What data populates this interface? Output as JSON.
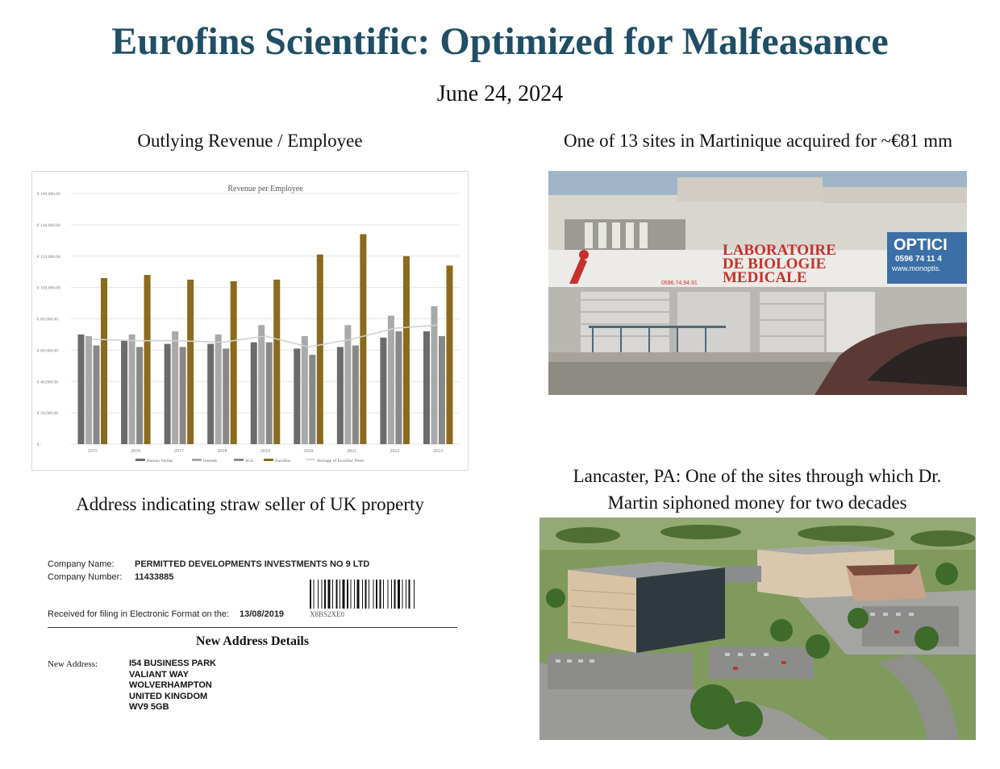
{
  "header": {
    "title": "Eurofins Scientific: Optimized for Malfeasance",
    "date": "June 24, 2024"
  },
  "captions": {
    "chart": "Outlying Revenue / Employee",
    "martinique": "One of 13 sites in Martinique acquired for ~€81 mm",
    "address": "Address indicating straw seller of UK property",
    "lancaster_line1": "Lancaster, PA: One of the sites through which Dr.",
    "lancaster_line2": "Martin siphoned money for two decades"
  },
  "chart_data": {
    "type": "bar",
    "title": "Revenue per Employee",
    "categories": [
      "2015",
      "2016",
      "2017",
      "2018",
      "2019",
      "2020",
      "2021",
      "2022",
      "2023"
    ],
    "ylim": [
      0,
      160000
    ],
    "yticks": [
      "€ 160,000.00",
      "€ 140,000.00",
      "€ 120,000.00",
      "€ 100,000.00",
      "€ 80,000.00",
      "€ 60,000.00",
      "€ 40,000.00",
      "€ 20,000.00",
      "€ -"
    ],
    "series": [
      {
        "name": "Bureau Veritas",
        "color": "#6b6b6b",
        "values": [
          70000,
          66000,
          64000,
          64000,
          65000,
          61000,
          62000,
          68000,
          72000
        ]
      },
      {
        "name": "Intertek",
        "color": "#a9a9a9",
        "values": [
          69000,
          70000,
          72000,
          70000,
          76000,
          69000,
          76000,
          82000,
          88000
        ]
      },
      {
        "name": "SGS",
        "color": "#888888",
        "values": [
          63000,
          62000,
          62000,
          61000,
          65000,
          57000,
          63000,
          72000,
          69000
        ]
      },
      {
        "name": "Eurofins",
        "color": "#8a6a1c",
        "values": [
          106000,
          108000,
          105000,
          104000,
          105000,
          121000,
          134000,
          120000,
          114000
        ]
      }
    ],
    "line": {
      "name": "Average of Eurofins' Peers",
      "color": "#d0d0d0",
      "values": [
        67000,
        66000,
        66000,
        65000,
        69000,
        62000,
        67000,
        74000,
        76000
      ]
    },
    "legend_position": "bottom",
    "grid": true
  },
  "martinique_photo": {
    "signs": {
      "lab_line1": "LABORATOIRE",
      "lab_line2": "DE BIOLOGIE",
      "lab_line3": "MEDICALE",
      "phone": "0596.74.94.91",
      "optic": "OPTICI",
      "optic_phone": "0596 74 11 4",
      "optic_web": "www.monoptis."
    }
  },
  "document": {
    "company_name_label": "Company Name:",
    "company_name": "PERMITTED DEVELOPMENTS INVESTMENTS NO 9 LTD",
    "company_number_label": "Company Number:",
    "company_number": "11433885",
    "received_label": "Received for filing in Electronic Format on the:",
    "received_date": "13/08/2019",
    "barcode_text": "X8BS2XE0",
    "heading": "New Address Details",
    "new_address_label": "New Address:",
    "address_lines": [
      "I54 BUSINESS PARK",
      "VALIANT WAY",
      "WOLVERHAMPTON",
      "UNITED KINGDOM",
      "WV9 5GB"
    ]
  },
  "colors": {
    "title": "#1f4e66",
    "eurofins_bar": "#8a6a1c"
  }
}
